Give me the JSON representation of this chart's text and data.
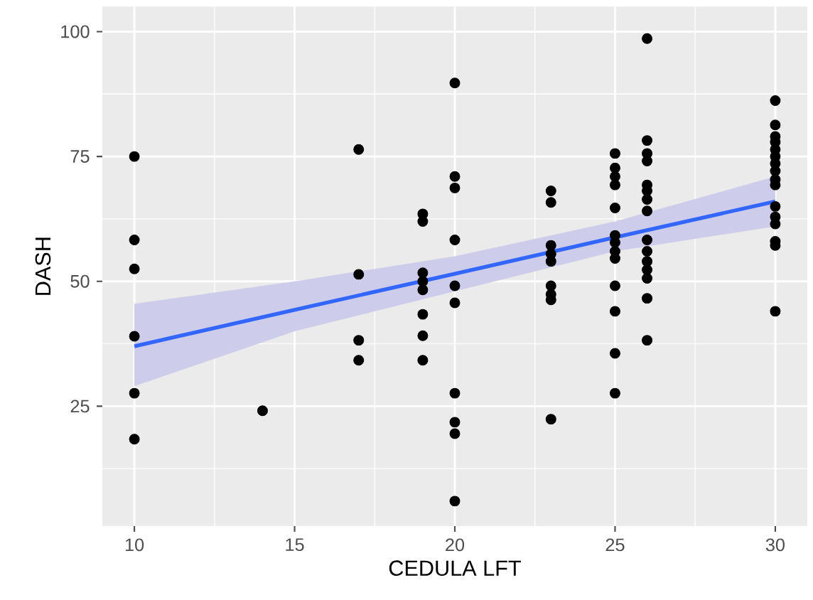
{
  "chart_data": {
    "type": "scatter",
    "xlabel": "CEDULA LFT",
    "ylabel": "DASH",
    "xlim": [
      9,
      31
    ],
    "ylim": [
      1,
      105
    ],
    "xticks": [
      10,
      15,
      20,
      25,
      30
    ],
    "yticks": [
      25,
      50,
      75,
      100
    ],
    "grid": true,
    "marker": "circle",
    "series": [
      {
        "color": "#000000",
        "x": [
          10,
          10,
          10,
          10,
          10,
          10,
          14,
          17,
          17,
          17,
          17,
          19,
          19,
          19,
          19,
          19,
          19,
          19,
          19,
          20,
          20,
          20,
          20,
          20,
          20,
          20,
          20,
          20,
          20,
          23,
          23,
          23,
          23,
          23,
          23,
          23,
          23,
          23,
          25,
          25,
          25,
          25,
          25,
          25,
          25,
          25,
          25,
          25,
          25,
          25,
          25,
          26,
          26,
          26,
          26,
          26,
          26,
          26,
          26,
          26,
          26,
          26,
          26,
          26,
          26,
          26,
          30,
          30,
          30,
          30,
          30,
          30,
          30,
          30,
          30,
          30,
          30,
          30,
          30,
          30,
          30,
          30
        ],
        "values": [
          75,
          58.3,
          52.5,
          39,
          27.6,
          18.4,
          24.1,
          76.4,
          51.4,
          38.2,
          34.2,
          63.5,
          62,
          51.7,
          50,
          48.3,
          43.4,
          39.1,
          34.2,
          89.7,
          71,
          68.7,
          58.3,
          49.1,
          45.7,
          27.6,
          21.8,
          19.5,
          6,
          68.1,
          65.8,
          57.2,
          55.5,
          54,
          49.1,
          47.4,
          46.3,
          22.4,
          75.6,
          72.7,
          71,
          69.3,
          64.7,
          59.2,
          57.8,
          56,
          54.6,
          49.1,
          44,
          35.6,
          27.6,
          98.6,
          78.2,
          75.6,
          74.1,
          69.3,
          68.1,
          66.4,
          64.1,
          58.3,
          56,
          54,
          52.3,
          50.6,
          46.6,
          38.2,
          86.2,
          81.3,
          79,
          77.9,
          76.4,
          75,
          73.6,
          72.1,
          70.4,
          69.3,
          65,
          62.9,
          61.5,
          58,
          57.2,
          44
        ]
      },
      {
        "type": "line",
        "marker": "none",
        "color": "#3366ff",
        "x": [
          10,
          15,
          20,
          25,
          30
        ],
        "values": [
          37,
          44.3,
          51.5,
          58.8,
          66
        ],
        "lower": [
          29,
          40,
          48,
          56,
          61
        ],
        "upper": [
          45.5,
          50,
          55,
          62,
          71
        ]
      }
    ]
  }
}
